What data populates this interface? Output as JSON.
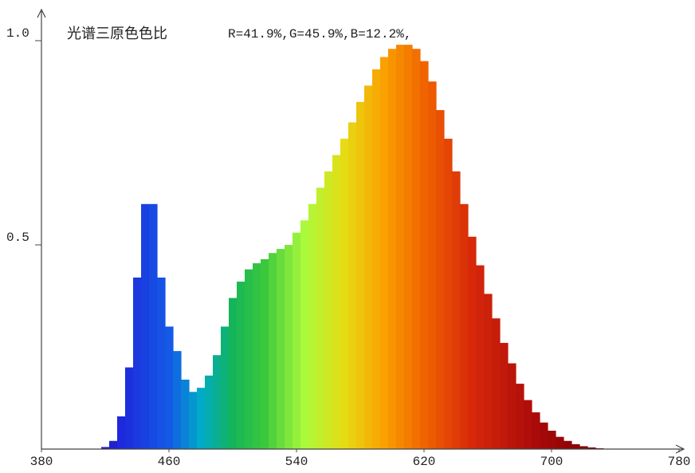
{
  "chart_data": {
    "type": "spectrum",
    "title": "光谱三原色色比",
    "annotation": "R=41.9%,G=45.9%,B=12.2%,",
    "x": [
      415,
      420,
      425,
      430,
      435,
      440,
      445,
      450,
      455,
      460,
      465,
      470,
      475,
      480,
      485,
      490,
      495,
      500,
      505,
      510,
      515,
      520,
      525,
      530,
      535,
      540,
      545,
      550,
      555,
      560,
      565,
      570,
      575,
      580,
      585,
      590,
      595,
      600,
      605,
      610,
      615,
      620,
      625,
      630,
      635,
      640,
      645,
      650,
      655,
      660,
      665,
      670,
      675,
      680,
      685,
      690,
      695,
      700,
      705,
      710,
      715,
      720,
      725,
      730,
      735,
      740
    ],
    "values": [
      0,
      0.005,
      0.02,
      0.08,
      0.2,
      0.42,
      0.6,
      0.6,
      0.42,
      0.3,
      0.24,
      0.17,
      0.14,
      0.15,
      0.18,
      0.23,
      0.3,
      0.37,
      0.41,
      0.44,
      0.455,
      0.465,
      0.48,
      0.49,
      0.5,
      0.53,
      0.56,
      0.6,
      0.64,
      0.68,
      0.72,
      0.76,
      0.8,
      0.85,
      0.89,
      0.93,
      0.96,
      0.98,
      0.99,
      0.99,
      0.98,
      0.95,
      0.9,
      0.83,
      0.76,
      0.68,
      0.6,
      0.52,
      0.45,
      0.38,
      0.32,
      0.26,
      0.21,
      0.16,
      0.12,
      0.09,
      0.065,
      0.045,
      0.03,
      0.02,
      0.012,
      0.007,
      0.004,
      0.002,
      0.001,
      0
    ],
    "xlim": [
      380,
      780
    ],
    "xticks": [
      380,
      460,
      540,
      620,
      700,
      780
    ],
    "ylim": [
      0,
      1
    ],
    "yticks": [
      {
        "value": 0.5,
        "label": "0.5"
      },
      {
        "value": 1,
        "label": "1.0"
      }
    ]
  }
}
